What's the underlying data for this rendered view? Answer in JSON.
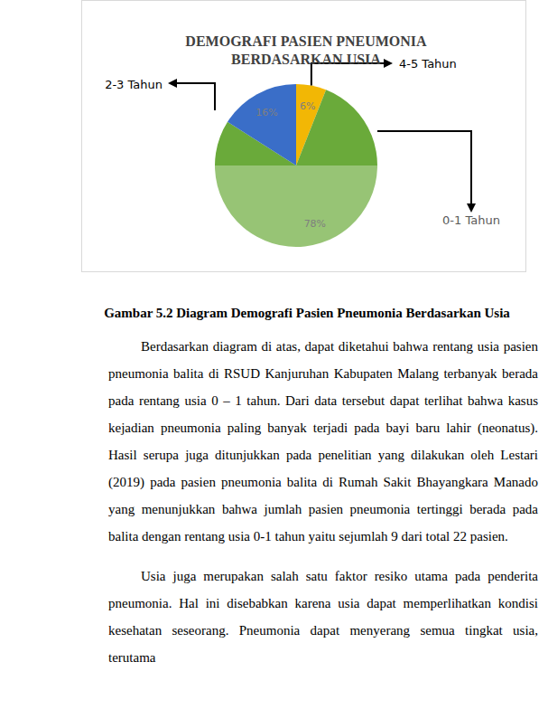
{
  "chart_data": {
    "type": "pie",
    "title": "DEMOGRAFI PASIEN PNEUMONIA BERDASARKAN USIA",
    "categories": [
      "4-5 Tahun",
      "0-1 Tahun",
      "2-3 Tahun"
    ],
    "values": [
      6,
      78,
      16
    ],
    "value_labels": [
      "6%",
      "78%",
      "16%"
    ],
    "colors": [
      "#f2b705",
      "#6aaa3a",
      "#3a6ec8"
    ],
    "data_labels": true
  },
  "caption": "Gambar 5.2 Diagram Demografi Pasien Pneumonia Berdasarkan Usia",
  "paragraphs": [
    "Berdasarkan diagram di atas, dapat diketahui bahwa rentang usia pasien pneumonia balita di RSUD Kanjuruhan Kabupaten Malang terbanyak berada pada rentang usia 0 – 1 tahun. Dari data tersebut dapat terlihat bahwa kasus kejadian pneumonia paling banyak terjadi pada bayi baru lahir (neonatus). Hasil serupa juga ditunjukkan pada penelitian yang dilakukan oleh Lestari (2019) pada pasien pneumonia balita di Rumah Sakit Bhayangkara Manado yang menunjukkan bahwa jumlah pasien pneumonia tertinggi berada pada balita dengan rentang usia 0-1 tahun yaitu sejumlah 9 dari total 22 pasien.",
    "Usia juga merupakan salah satu faktor resiko utama pada penderita pneumonia. Hal ini disebabkan karena usia dapat memperlihatkan kondisi kesehatan seseorang. Pneumonia dapat menyerang semua tingkat usia, terutama"
  ]
}
